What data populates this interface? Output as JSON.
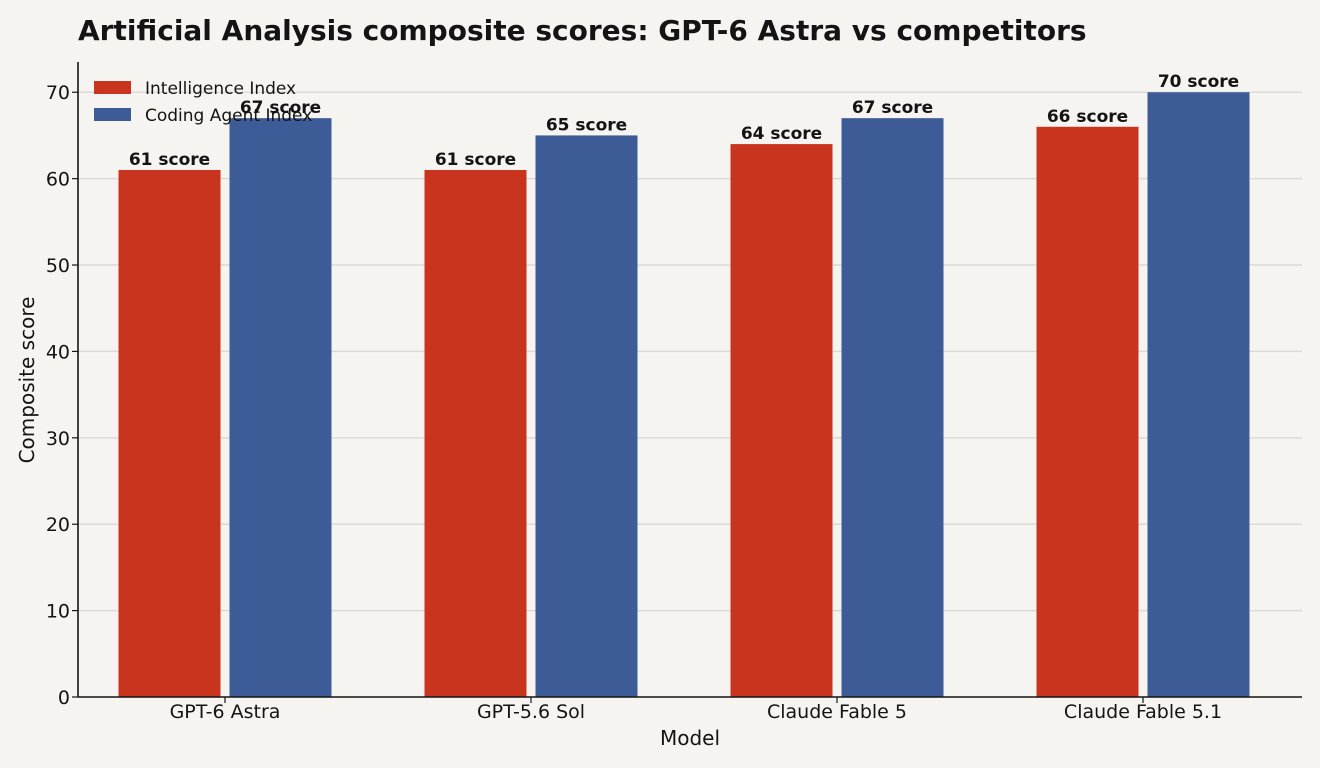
{
  "chart_data": {
    "type": "bar",
    "title": "Artificial Analysis composite scores: GPT-6 Astra vs competitors",
    "xlabel": "Model",
    "ylabel": "Composite score",
    "categories": [
      "GPT-6 Astra",
      "GPT-5.6 Sol",
      "Claude Fable 5",
      "Claude Fable 5.1"
    ],
    "series": [
      {
        "name": "Intelligence Index",
        "color": "#c9341f",
        "values": [
          61,
          61,
          64,
          66
        ]
      },
      {
        "name": "Coding Agent Index",
        "color": "#3d5b96",
        "values": [
          67,
          65,
          67,
          70
        ]
      }
    ],
    "value_suffix": " score",
    "ylim": [
      0,
      73.5
    ],
    "yticks": [
      0,
      10,
      20,
      30,
      40,
      50,
      60,
      70
    ],
    "grid": true,
    "legend_position": "top-left"
  }
}
